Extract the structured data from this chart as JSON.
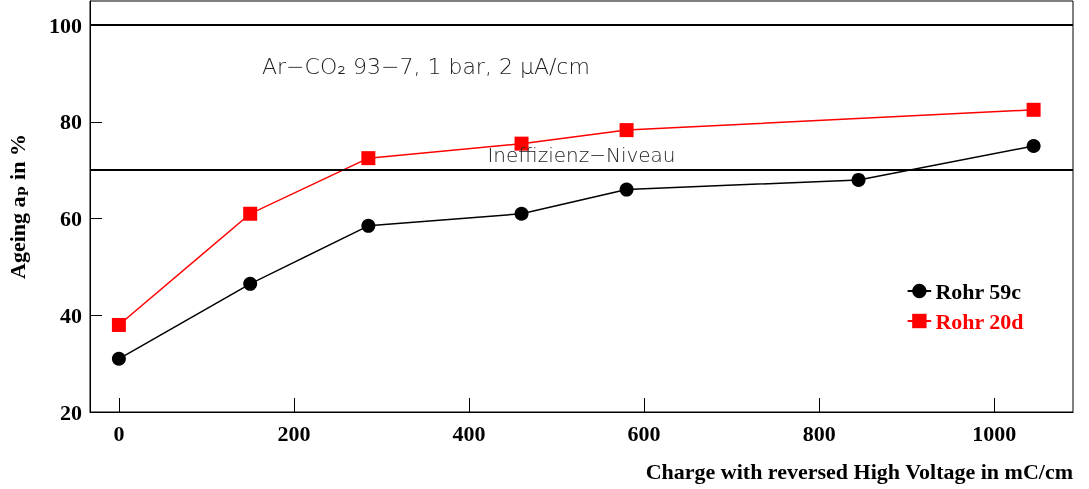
{
  "chart_data": {
    "type": "line",
    "xlabel": "Charge with reversed High Voltage in mC/cm",
    "ylabel": "Ageing aₚ in %",
    "annotations": [
      "Ar−CO₂ 93−7, 1 bar, 2 μA/cm"
    ],
    "series": [
      {
        "name": "Rohr 59c",
        "color": "#000000",
        "marker": "circle",
        "x": [
          0,
          150,
          285,
          460,
          580,
          845,
          1045
        ],
        "values": [
          31,
          46.5,
          58.5,
          61,
          66,
          68,
          75
        ]
      },
      {
        "name": "Rohr 20d",
        "color": "#ff0000",
        "marker": "square",
        "x": [
          0,
          150,
          285,
          460,
          580,
          1045
        ],
        "values": [
          38,
          61,
          72.5,
          75.5,
          78.3,
          82.5
        ]
      }
    ],
    "xlim": [
      -33,
      1090
    ],
    "xticks": [
      0,
      200,
      400,
      600,
      800,
      1000
    ],
    "ylim": [
      20,
      105
    ],
    "yticks": [
      20,
      40,
      60,
      80,
      100
    ],
    "ref_lines": [
      {
        "axis": "y",
        "value": 100,
        "label": null,
        "color": "#000000"
      },
      {
        "axis": "y",
        "value": 70,
        "label": "Ineffizienz−Niveau",
        "color": "#000000"
      }
    ],
    "grid": false,
    "legend": "right",
    "line_style": "solid"
  }
}
